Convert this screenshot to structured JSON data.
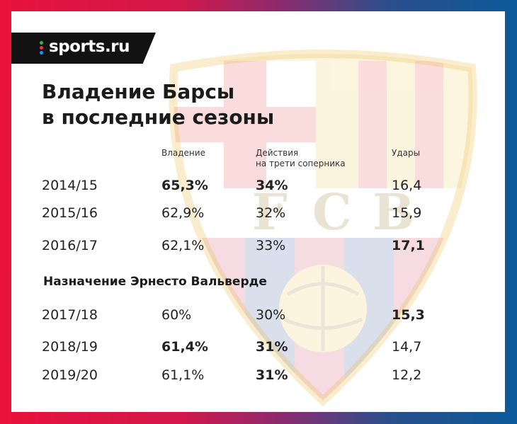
{
  "logo": {
    "text": "sports.ru",
    "dot_colors": [
      "#3cb54a",
      "#ff2b4a",
      "#1e90ff"
    ]
  },
  "title": {
    "line1": "Владение Барсы",
    "line2": "в последние сезоны"
  },
  "columns": {
    "possession": "Владение",
    "actions_line1": "Действия",
    "actions_line2": "на трети соперника",
    "shots": "Удары"
  },
  "crest_letters": [
    "F",
    "C",
    "B"
  ],
  "rows_before": [
    {
      "season": "2014/15",
      "possession": "65,3%",
      "actions": "34%",
      "shots": "16,4",
      "bold": [
        "possession",
        "actions"
      ]
    },
    {
      "season": "2015/16",
      "possession": "62,9%",
      "actions": "32%",
      "shots": "15,9",
      "bold": []
    },
    {
      "season": "2016/17",
      "possession": "62,1%",
      "actions": "33%",
      "shots": "17,1",
      "bold": [
        "shots"
      ]
    }
  ],
  "section_label": "Назначение Эрнесто Вальверде",
  "rows_after": [
    {
      "season": "2017/18",
      "possession": "60%",
      "actions": "30%",
      "shots": "15,3",
      "bold": [
        "shots"
      ]
    },
    {
      "season": "2018/19",
      "possession": "61,4%",
      "actions": "31%",
      "shots": "14,7",
      "bold": [
        "possession",
        "actions"
      ]
    },
    {
      "season": "2019/20",
      "possession": "61,1%",
      "actions": "31%",
      "shots": "12,2",
      "bold": [
        "actions"
      ]
    }
  ]
}
